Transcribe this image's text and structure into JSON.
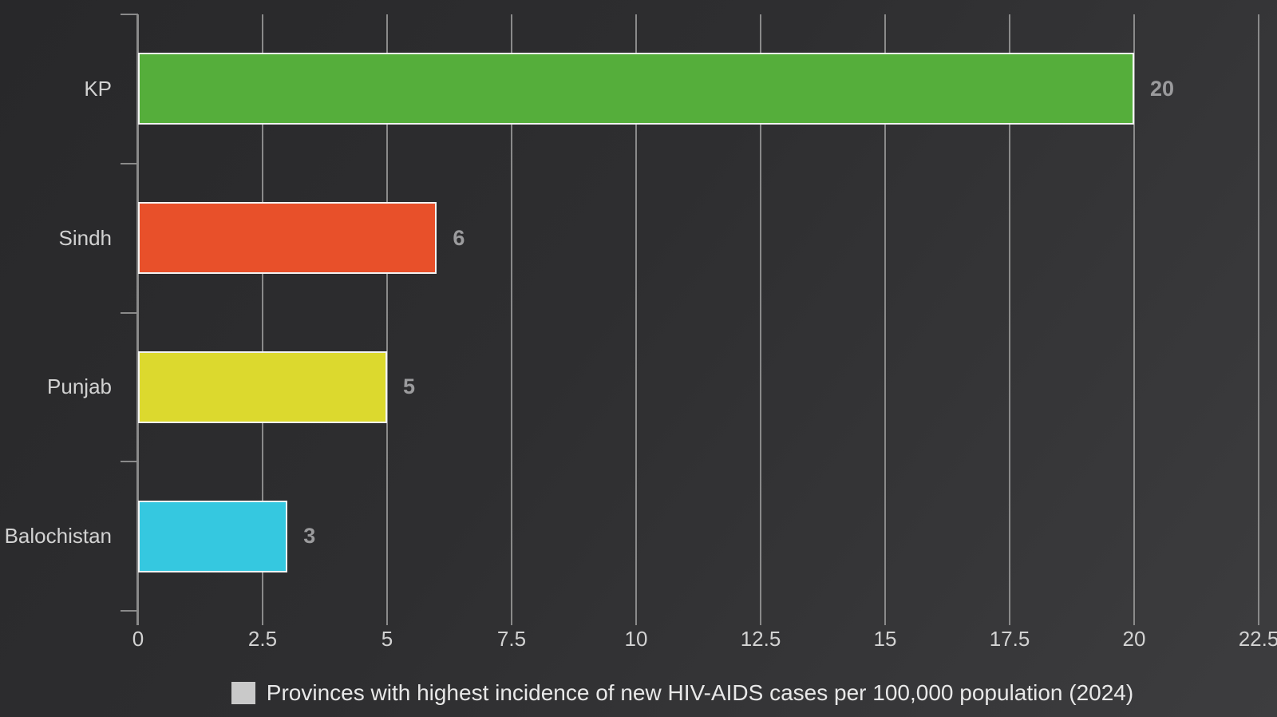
{
  "chart_data": {
    "type": "bar",
    "orientation": "horizontal",
    "title": "",
    "xlabel": "",
    "ylabel": "",
    "categories": [
      "KP",
      "Sindh",
      "Punjab",
      "Balochistan"
    ],
    "values": [
      20,
      6,
      5,
      3
    ],
    "value_labels": [
      "20",
      "6",
      "5",
      "3"
    ],
    "bar_colors": [
      "#55ae3b",
      "#e8502a",
      "#dcd92e",
      "#35c8e0"
    ],
    "xlim": [
      0,
      22.5
    ],
    "xtick_labels": [
      "0",
      "2.5",
      "5",
      "7.5",
      "10",
      "12.5",
      "15",
      "17.5",
      "20",
      "22.5"
    ],
    "grid": "vertical gridlines on",
    "legend_position": "bottom"
  },
  "legend": {
    "label": "Provinces with highest incidence of new HIV-AIDS cases per 100,000 population (2024)",
    "swatch_color": "#c9c9c9"
  },
  "colors": {
    "background_start": "#28282a",
    "background_end": "#3d3d3f",
    "gridline": "#8a8a8a",
    "axis": "#8a8a8a",
    "bar_border": "#f2f2f2",
    "category_label_text": "#d2d2d2",
    "tick_label_text": "#d2d2d2",
    "value_label_text": "#9b9b9d",
    "legend_text": "#e8e8e8"
  }
}
